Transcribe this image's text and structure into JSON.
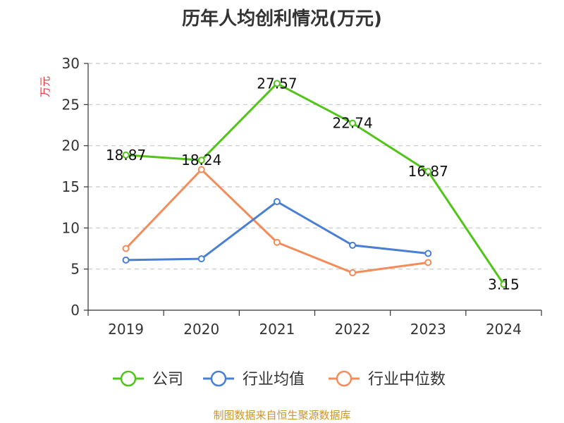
{
  "chart_data": {
    "type": "line",
    "title": "历年人均创利情况(万元)",
    "ylabel": "万元",
    "xlabel": "",
    "categories": [
      "2019",
      "2020",
      "2021",
      "2022",
      "2023",
      "2024"
    ],
    "ylim": [
      0,
      30
    ],
    "yticks": [
      0,
      5,
      10,
      15,
      20,
      25,
      30
    ],
    "grid": true,
    "legend_position": "bottom",
    "series": [
      {
        "name": "公司",
        "color": "#52c41a",
        "values": [
          18.87,
          18.24,
          27.57,
          22.74,
          16.87,
          3.15
        ],
        "labels": [
          "18.87",
          "18.24",
          "27.57",
          "22.74",
          "16.87",
          "3.15"
        ]
      },
      {
        "name": "行业均值",
        "color": "#4a7fd4",
        "values": [
          6.1,
          6.25,
          13.2,
          7.9,
          6.9,
          null
        ]
      },
      {
        "name": "行业中位数",
        "color": "#f28c5a",
        "values": [
          7.5,
          17.1,
          8.25,
          4.55,
          5.8,
          null
        ]
      }
    ]
  },
  "source": "制图数据来自恒生聚源数据库"
}
